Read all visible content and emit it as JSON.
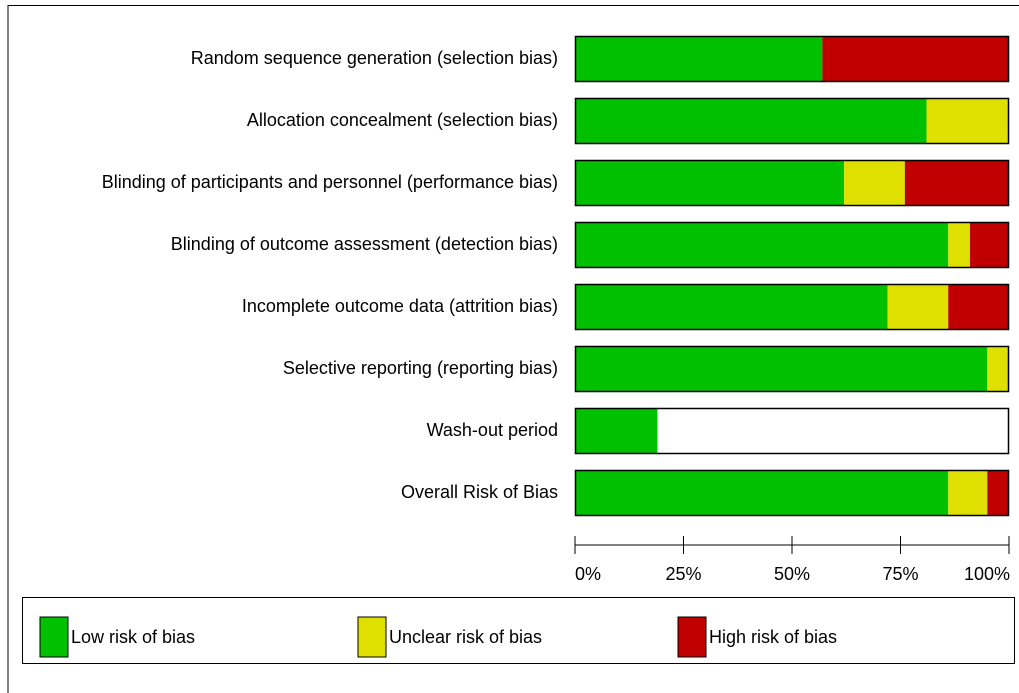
{
  "chart_data": {
    "type": "stacked_barh",
    "categories": [
      "Random sequence generation (selection bias)",
      "Allocation concealment (selection bias)",
      "Blinding of participants and personnel (performance bias)",
      "Blinding of outcome assessment (detection bias)",
      "Incomplete outcome data (attrition bias)",
      "Selective reporting (reporting bias)",
      "Wash-out period",
      "Overall Risk of Bias"
    ],
    "series": [
      {
        "name": "Low risk of bias",
        "color": "#00c000",
        "values": [
          57,
          81,
          62,
          86,
          72,
          95,
          19,
          86
        ]
      },
      {
        "name": "Unclear risk of bias",
        "color": "#e0e000",
        "values": [
          0,
          19,
          14,
          5,
          14,
          5,
          0,
          9
        ]
      },
      {
        "name": "High risk of bias",
        "color": "#c00000",
        "values": [
          43,
          0,
          24,
          9,
          14,
          0,
          0,
          5
        ]
      }
    ],
    "xlim": [
      0,
      100
    ],
    "xticks": [
      {
        "value": 0,
        "label": "0%"
      },
      {
        "value": 25,
        "label": "25%"
      },
      {
        "value": 50,
        "label": "50%"
      },
      {
        "value": 75,
        "label": "75%"
      },
      {
        "value": 100,
        "label": "100%"
      }
    ],
    "legend": "bottom"
  }
}
